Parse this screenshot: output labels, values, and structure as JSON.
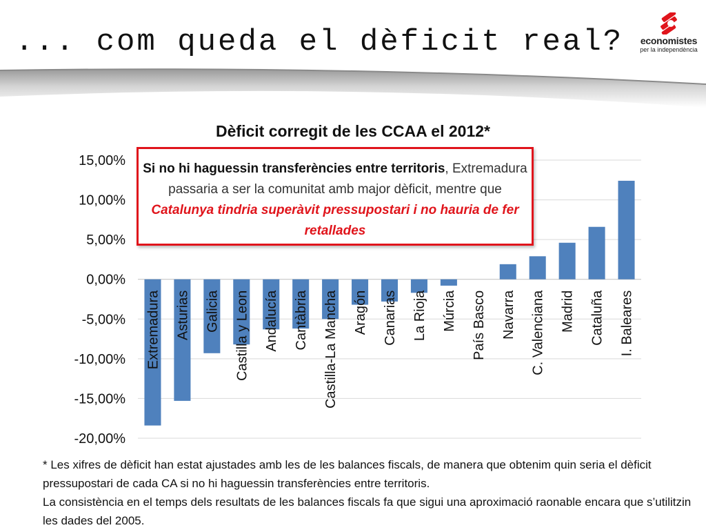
{
  "slide": {
    "title": "... com queda el dèficit real?"
  },
  "logo": {
    "name": "economistes",
    "tagline": "per la independència",
    "color": "#e0141b"
  },
  "annotation": {
    "lead": "Si no hi haguessin transferències entre territoris",
    "middle": ", Extremadura passaria a ser la comunitat amb major dèficit, mentre que ",
    "highlight": "Catalunya tindria superàvit pressupostari i no hauria de fer retallades",
    "border_color": "#e0141b"
  },
  "footnote": {
    "line1": "* Les xifres de dèficit han estat ajustades amb les de les balances fiscals, de manera que obtenim quin seria el dèficit pressupostari de cada CA si no hi haguessin transferències entre territoris.",
    "line2": "La consistència en el temps dels resultats de les balances fiscals fa que sigui una aproximació raonable encara que s’utilitzin les dades del 2005."
  },
  "chart_data": {
    "type": "bar",
    "title": "Dèficit corregit de les CCAA el 2012*",
    "categories": [
      "Extremadura",
      "Asturias",
      "Galicia",
      "Castilla y Leon",
      "Andalucía",
      "Cantàbria",
      "Castilla-La Mancha",
      "Aragón",
      "Canarias",
      "La Rioja",
      "Múrcia",
      "País Basco",
      "Navarra",
      "C. Valenciana",
      "Madrid",
      "Cataluña",
      "I. Baleares"
    ],
    "values": [
      -18.4,
      -15.3,
      -9.3,
      -8.2,
      -6.3,
      -6.2,
      -5.0,
      -3.2,
      -2.8,
      -1.7,
      -0.8,
      0.0,
      1.9,
      2.9,
      4.6,
      6.6,
      12.4
    ],
    "ylim": [
      -20,
      15
    ],
    "yticks": [
      "15,00%",
      "10,00%",
      "5,00%",
      "0,00%",
      "-5,00%",
      "-10,00%",
      "-15,00%",
      "-20,00%"
    ],
    "ytick_values": [
      15,
      10,
      5,
      0,
      -5,
      -10,
      -15,
      -20
    ],
    "xlabel": "",
    "ylabel": "",
    "grid": true,
    "bar_color": "#4f81bd",
    "grid_color": "#d9d9d9"
  }
}
